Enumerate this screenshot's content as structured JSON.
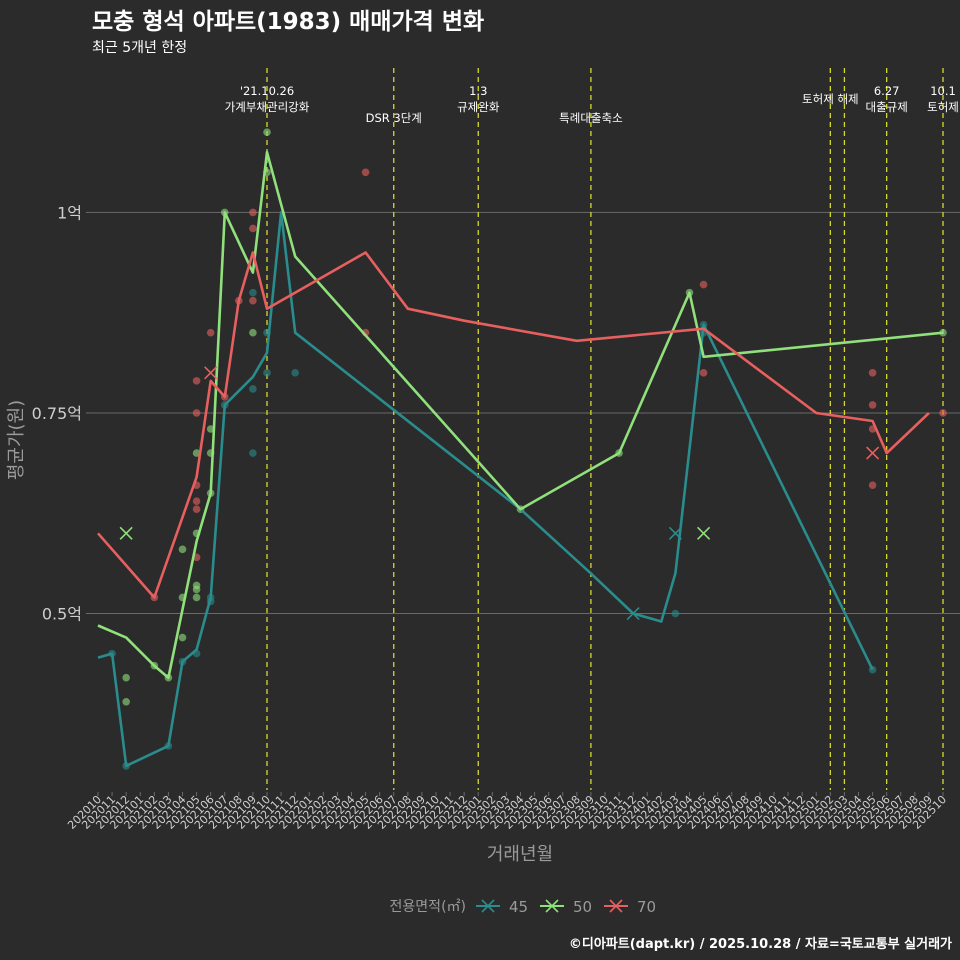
{
  "chart_data": {
    "type": "line",
    "title": "모충 형석 아파트(1983) 매매가격 변화",
    "subtitle": "최근 5개년 한정",
    "xlabel": "거래년월",
    "ylabel": "평균가(원)",
    "legend_title": "전용면적(㎡)",
    "legend_position": "bottom",
    "caption": "©디아파트(dapt.kr) / 2025.10.28 / 자료=국토교통부 실거래가",
    "ylim": [
      0.28,
      1.18
    ],
    "yticks": [
      {
        "v": 0.5,
        "label": "0.5억"
      },
      {
        "v": 0.75,
        "label": "0.75억"
      },
      {
        "v": 1.0,
        "label": "1억"
      }
    ],
    "x_start": "2020-10",
    "x_end": "2025-10",
    "x_tick_step": 1,
    "colors": {
      "45": "#2a8c8c",
      "50": "#90e07c",
      "70": "#e85f5f",
      "vline": "#d8d830",
      "grid": "#6a6a6a",
      "bg": "#2b2b2b",
      "text": "#ffffff",
      "axis_text": "#cfcfcf",
      "muted": "#9a9a9a"
    },
    "events": [
      {
        "date": "2021-10",
        "lines": [
          "'21.10.26",
          "가계부채관리강화"
        ],
        "row": 0
      },
      {
        "date": "2022-07",
        "lines": [
          "DSR 3단계"
        ],
        "row": 1
      },
      {
        "date": "2023-01",
        "lines": [
          "1.3",
          "규제완화"
        ],
        "row": 0
      },
      {
        "date": "2023-09",
        "lines": [
          "특례대출축소"
        ],
        "row": 1
      },
      {
        "date": "2025-02",
        "lines": [
          "토허제 해제"
        ],
        "row": 0
      },
      {
        "date": "2025-03",
        "lines": [],
        "row": 0
      },
      {
        "date": "2025-06",
        "lines": [
          "6.27",
          "대출규제"
        ],
        "row": 0
      },
      {
        "date": "2025-10",
        "lines": [
          "10.1",
          "토허제"
        ],
        "row": 0
      }
    ],
    "series": [
      {
        "name": "45",
        "points": [
          [
            "2020-10",
            0.445
          ],
          [
            "2020-11",
            0.45
          ],
          [
            "2020-12",
            0.31
          ],
          [
            "2021-03",
            0.335
          ],
          [
            "2021-04",
            0.44
          ],
          [
            "2021-05",
            0.455
          ],
          [
            "2021-06",
            0.52
          ],
          [
            "2021-07",
            0.76
          ],
          [
            "2021-09",
            0.795
          ],
          [
            "2021-10",
            0.825
          ],
          [
            "2021-11",
            1.0
          ],
          [
            "2021-12",
            0.85
          ],
          [
            "2023-04",
            0.63
          ],
          [
            "2023-09",
            0.55
          ],
          [
            "2023-12",
            0.5
          ],
          [
            "2024-02",
            0.49
          ],
          [
            "2024-03",
            0.55
          ],
          [
            "2024-05",
            0.86
          ],
          [
            "2025-05",
            0.43
          ]
        ],
        "scatter": [
          [
            "2020-11",
            0.45
          ],
          [
            "2020-12",
            0.31
          ],
          [
            "2021-03",
            0.335
          ],
          [
            "2021-04",
            0.44
          ],
          [
            "2021-05",
            0.45
          ],
          [
            "2021-06",
            0.515
          ],
          [
            "2021-06",
            0.52
          ],
          [
            "2021-07",
            0.76
          ],
          [
            "2021-09",
            0.78
          ],
          [
            "2021-09",
            0.7
          ],
          [
            "2021-09",
            0.9
          ],
          [
            "2021-10",
            0.8
          ],
          [
            "2021-10",
            0.85
          ],
          [
            "2021-12",
            0.8
          ],
          [
            "2024-03",
            0.5
          ],
          [
            "2024-05",
            0.85
          ],
          [
            "2024-05",
            0.86
          ],
          [
            "2025-05",
            0.43
          ]
        ],
        "crosses": [
          [
            "2023-12",
            0.5
          ],
          [
            "2024-03",
            0.6
          ]
        ]
      },
      {
        "name": "50",
        "points": [
          [
            "2020-10",
            0.485
          ],
          [
            "2020-12",
            0.47
          ],
          [
            "2021-02",
            0.435
          ],
          [
            "2021-03",
            0.42
          ],
          [
            "2021-05",
            0.59
          ],
          [
            "2021-06",
            0.65
          ],
          [
            "2021-07",
            1.0
          ],
          [
            "2021-09",
            0.925
          ],
          [
            "2021-10",
            1.075
          ],
          [
            "2021-12",
            0.945
          ],
          [
            "2023-04",
            0.63
          ],
          [
            "2023-11",
            0.7
          ],
          [
            "2024-04",
            0.9
          ],
          [
            "2024-05",
            0.82
          ],
          [
            "2025-10",
            0.85
          ]
        ],
        "scatter": [
          [
            "2020-12",
            0.42
          ],
          [
            "2020-12",
            0.39
          ],
          [
            "2021-02",
            0.435
          ],
          [
            "2021-03",
            0.42
          ],
          [
            "2021-04",
            0.52
          ],
          [
            "2021-04",
            0.58
          ],
          [
            "2021-04",
            0.47
          ],
          [
            "2021-05",
            0.6
          ],
          [
            "2021-05",
            0.7
          ],
          [
            "2021-05",
            0.52
          ],
          [
            "2021-05",
            0.53
          ],
          [
            "2021-05",
            0.535
          ],
          [
            "2021-06",
            0.65
          ],
          [
            "2021-06",
            0.7
          ],
          [
            "2021-06",
            0.73
          ],
          [
            "2021-07",
            1.0
          ],
          [
            "2021-09",
            0.85
          ],
          [
            "2021-10",
            1.05
          ],
          [
            "2021-10",
            1.1
          ],
          [
            "2023-04",
            0.63
          ],
          [
            "2023-11",
            0.7
          ],
          [
            "2024-04",
            0.9
          ],
          [
            "2025-10",
            0.85
          ]
        ],
        "crosses": [
          [
            "2020-12",
            0.6
          ],
          [
            "2024-05",
            0.6
          ]
        ]
      },
      {
        "name": "70",
        "points": [
          [
            "2020-10",
            0.6
          ],
          [
            "2021-02",
            0.52
          ],
          [
            "2021-05",
            0.67
          ],
          [
            "2021-06",
            0.79
          ],
          [
            "2021-07",
            0.77
          ],
          [
            "2021-08",
            0.89
          ],
          [
            "2021-09",
            0.95
          ],
          [
            "2021-10",
            0.88
          ],
          [
            "2022-05",
            0.95
          ],
          [
            "2022-08",
            0.88
          ],
          [
            "2022-12",
            0.865
          ],
          [
            "2023-08",
            0.84
          ],
          [
            "2024-05",
            0.855
          ],
          [
            "2025-01",
            0.75
          ],
          [
            "2025-05",
            0.74
          ],
          [
            "2025-06",
            0.7
          ],
          [
            "2025-09",
            0.75
          ]
        ],
        "scatter": [
          [
            "2021-02",
            0.52
          ],
          [
            "2021-05",
            0.79
          ],
          [
            "2021-05",
            0.75
          ],
          [
            "2021-05",
            0.66
          ],
          [
            "2021-05",
            0.64
          ],
          [
            "2021-05",
            0.63
          ],
          [
            "2021-05",
            0.57
          ],
          [
            "2021-06",
            0.85
          ],
          [
            "2021-07",
            0.77
          ],
          [
            "2021-08",
            0.89
          ],
          [
            "2021-09",
            1.0
          ],
          [
            "2021-09",
            0.98
          ],
          [
            "2021-09",
            0.89
          ],
          [
            "2022-05",
            1.05
          ],
          [
            "2022-05",
            0.85
          ],
          [
            "2024-05",
            0.91
          ],
          [
            "2024-05",
            0.8
          ],
          [
            "2025-05",
            0.8
          ],
          [
            "2025-05",
            0.76
          ],
          [
            "2025-05",
            0.73
          ],
          [
            "2025-05",
            0.66
          ],
          [
            "2025-10",
            0.75
          ]
        ],
        "crosses": [
          [
            "2021-06",
            0.8
          ],
          [
            "2025-05",
            0.7
          ]
        ]
      }
    ]
  }
}
